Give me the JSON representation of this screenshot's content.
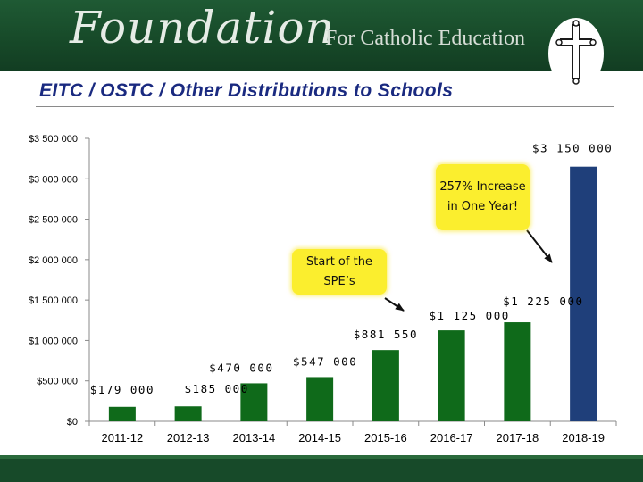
{
  "header": {
    "brand_script": "Foundation",
    "brand_sub": "For Catholic Education",
    "logo_icon": "cross-icon"
  },
  "slide": {
    "title": "EITC / OSTC / Other Distributions to Schools"
  },
  "callouts": {
    "growth": "257% Increase in One Year!",
    "spe": "Start of the SPE’s"
  },
  "colors": {
    "banner": "#1a4d2e",
    "title": "#1a2a80",
    "bar_default": "#0f6a1a",
    "bar_highlight": "#1f3f7a",
    "callout": "#fbee2e"
  },
  "chart_data": {
    "type": "bar",
    "title": "",
    "xlabel": "",
    "ylabel": "",
    "ylim": [
      0,
      3500000
    ],
    "yticks": [
      0,
      500000,
      1000000,
      1500000,
      2000000,
      2500000,
      3000000,
      3500000
    ],
    "ytick_labels": [
      "$0",
      "$500 000",
      "$1 000 000",
      "$1 500 000",
      "$2 000 000",
      "$2 500 000",
      "$3 000 000",
      "$3 500 000"
    ],
    "categories": [
      "2011-12",
      "2012-13",
      "2013-14",
      "2014-15",
      "2015-16",
      "2016-17",
      "2017-18",
      "2018-19"
    ],
    "values": [
      179000,
      185000,
      470000,
      547000,
      881550,
      1125000,
      1225000,
      3150000
    ],
    "data_labels": [
      "$179 000",
      "$185 000",
      "$470 000",
      "$547 000",
      "$881 550",
      "$1 125 000",
      "$1 225 000",
      "$3 150 000"
    ],
    "highlight_index": 7,
    "grid": false,
    "legend": "none"
  }
}
